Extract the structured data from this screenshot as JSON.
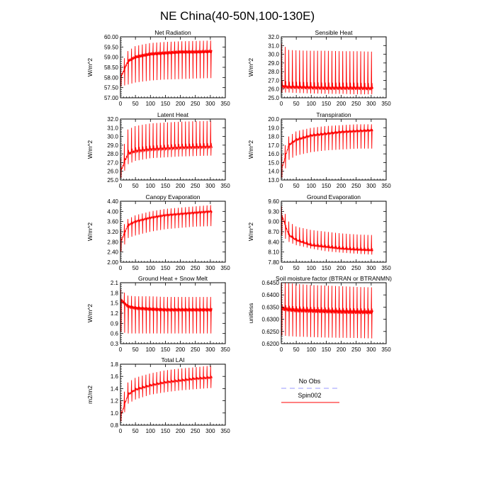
{
  "title": "NE China(40-50N,100-130E)",
  "colors": {
    "spin": "#ff0000",
    "noobs": "#9999ff",
    "axis": "#000000",
    "background": "#ffffff"
  },
  "legend": {
    "items": [
      {
        "label": "No Obs",
        "style": "dashed",
        "color": "#9999ff"
      },
      {
        "label": "Spin002",
        "style": "solid",
        "color": "#ff0000"
      }
    ]
  },
  "chart_data": [
    {
      "type": "line",
      "title": "Net Radiation",
      "ylabel": "W/m^2",
      "xlim": [
        0,
        350
      ],
      "ylim": [
        57.0,
        60.0
      ],
      "xticks": [
        0,
        50,
        100,
        150,
        200,
        250,
        300,
        350
      ],
      "yticks": [
        "57.00",
        "57.50",
        "58.00",
        "58.50",
        "59.00",
        "59.50",
        "60.00"
      ],
      "series": [
        {
          "name": "Spin002",
          "color": "#ff0000",
          "period_months": 12,
          "n_months": 306,
          "x": [
            1,
            25,
            50,
            100,
            150,
            200,
            250,
            306
          ],
          "min": [
            57.55,
            57.65,
            57.75,
            57.85,
            57.9,
            57.92,
            57.95,
            57.97
          ],
          "max": [
            58.6,
            59.3,
            59.55,
            59.7,
            59.75,
            59.78,
            59.8,
            59.82
          ],
          "mid": [
            58.0,
            58.8,
            59.0,
            59.15,
            59.2,
            59.25,
            59.25,
            59.28
          ]
        }
      ]
    },
    {
      "type": "line",
      "title": "Sensible Heat",
      "ylabel": "W/m^2",
      "xlim": [
        0,
        350
      ],
      "ylim": [
        25.0,
        32.0
      ],
      "xticks": [
        0,
        50,
        100,
        150,
        200,
        250,
        300,
        350
      ],
      "yticks": [
        "25.0",
        "26.0",
        "27.0",
        "28.0",
        "29.0",
        "30.0",
        "31.0",
        "32.0"
      ],
      "series": [
        {
          "name": "Spin002",
          "color": "#ff0000",
          "period_months": 12,
          "n_months": 306,
          "x": [
            1,
            25,
            50,
            100,
            150,
            200,
            250,
            306
          ],
          "min": [
            25.6,
            25.6,
            25.55,
            25.5,
            25.45,
            25.45,
            25.4,
            25.4
          ],
          "max": [
            31.2,
            30.5,
            30.45,
            30.4,
            30.4,
            30.35,
            30.35,
            30.3
          ],
          "mid": [
            26.3,
            26.2,
            26.2,
            26.15,
            26.1,
            26.1,
            26.1,
            26.05
          ]
        }
      ]
    },
    {
      "type": "line",
      "title": "Latent Heat",
      "ylabel": "W/m^2",
      "xlim": [
        0,
        350
      ],
      "ylim": [
        25.0,
        32.0
      ],
      "xticks": [
        0,
        50,
        100,
        150,
        200,
        250,
        300,
        350
      ],
      "yticks": [
        "25.0",
        "26.0",
        "27.0",
        "28.0",
        "29.0",
        "30.0",
        "31.0",
        "32.0"
      ],
      "series": [
        {
          "name": "Spin002",
          "color": "#ff0000",
          "period_months": 12,
          "n_months": 306,
          "x": [
            1,
            25,
            50,
            100,
            150,
            200,
            250,
            306
          ],
          "min": [
            25.2,
            26.8,
            27.2,
            27.5,
            27.6,
            27.7,
            27.75,
            27.8
          ],
          "max": [
            27.5,
            30.8,
            31.2,
            31.5,
            31.6,
            31.7,
            31.75,
            31.8
          ],
          "mid": [
            26.0,
            28.0,
            28.3,
            28.5,
            28.6,
            28.7,
            28.75,
            28.8
          ]
        }
      ]
    },
    {
      "type": "line",
      "title": "Transpiration",
      "ylabel": "W/m^2",
      "xlim": [
        0,
        350
      ],
      "ylim": [
        13.0,
        20.0
      ],
      "xticks": [
        0,
        50,
        100,
        150,
        200,
        250,
        300,
        350
      ],
      "yticks": [
        "13.0",
        "14.0",
        "15.0",
        "16.0",
        "17.0",
        "18.0",
        "19.0",
        "20.0"
      ],
      "series": [
        {
          "name": "Spin002",
          "color": "#ff0000",
          "period_months": 12,
          "n_months": 306,
          "x": [
            1,
            25,
            50,
            100,
            150,
            200,
            250,
            306
          ],
          "min": [
            13.2,
            15.3,
            15.8,
            16.2,
            16.4,
            16.5,
            16.6,
            16.6
          ],
          "max": [
            16.0,
            18.0,
            18.6,
            19.0,
            19.2,
            19.3,
            19.4,
            19.4
          ],
          "mid": [
            14.2,
            17.0,
            17.6,
            18.1,
            18.3,
            18.5,
            18.6,
            18.7
          ]
        }
      ]
    },
    {
      "type": "line",
      "title": "Canopy Evaporation",
      "ylabel": "W/m^2",
      "xlim": [
        0,
        350
      ],
      "ylim": [
        2.0,
        4.4
      ],
      "xticks": [
        0,
        50,
        100,
        150,
        200,
        250,
        300,
        350
      ],
      "yticks": [
        "2.00",
        "2.40",
        "2.80",
        "3.20",
        "3.60",
        "4.00",
        "4.40"
      ],
      "series": [
        {
          "name": "Spin002",
          "color": "#ff0000",
          "period_months": 12,
          "n_months": 306,
          "x": [
            1,
            25,
            50,
            100,
            150,
            200,
            250,
            306
          ],
          "min": [
            2.4,
            2.95,
            3.05,
            3.2,
            3.3,
            3.35,
            3.4,
            3.42
          ],
          "max": [
            3.3,
            3.7,
            3.85,
            4.0,
            4.1,
            4.15,
            4.2,
            4.25
          ],
          "mid": [
            2.8,
            3.45,
            3.6,
            3.75,
            3.85,
            3.9,
            3.95,
            4.0
          ]
        }
      ]
    },
    {
      "type": "line",
      "title": "Ground Evaporation",
      "ylabel": "W/m^2",
      "xlim": [
        0,
        350
      ],
      "ylim": [
        7.8,
        9.6
      ],
      "xticks": [
        0,
        50,
        100,
        150,
        200,
        250,
        300,
        350
      ],
      "yticks": [
        "7.80",
        "8.10",
        "8.40",
        "8.70",
        "9.00",
        "9.30",
        "9.60"
      ],
      "series": [
        {
          "name": "Spin002",
          "color": "#ff0000",
          "period_months": 12,
          "n_months": 306,
          "x": [
            1,
            25,
            50,
            100,
            150,
            200,
            250,
            306
          ],
          "min": [
            8.6,
            8.4,
            8.3,
            8.2,
            8.12,
            8.08,
            8.05,
            8.02
          ],
          "max": [
            9.45,
            9.0,
            8.85,
            8.75,
            8.7,
            8.65,
            8.62,
            8.6
          ],
          "mid": [
            9.2,
            8.6,
            8.45,
            8.3,
            8.25,
            8.2,
            8.17,
            8.15
          ]
        }
      ]
    },
    {
      "type": "line",
      "title": "Ground Heat + Snow Melt",
      "ylabel": "W/m^2",
      "xlim": [
        0,
        350
      ],
      "ylim": [
        0.3,
        2.1
      ],
      "xticks": [
        0,
        50,
        100,
        150,
        200,
        250,
        300,
        350
      ],
      "yticks": [
        "0.3",
        "0.6",
        "0.9",
        "1.2",
        "1.5",
        "1.8",
        "2.1"
      ],
      "series": [
        {
          "name": "Spin002",
          "color": "#ff0000",
          "period_months": 12,
          "n_months": 306,
          "x": [
            1,
            25,
            50,
            100,
            150,
            200,
            250,
            306
          ],
          "min": [
            0.65,
            0.6,
            0.6,
            0.6,
            0.6,
            0.6,
            0.6,
            0.6
          ],
          "max": [
            1.9,
            1.72,
            1.7,
            1.7,
            1.68,
            1.68,
            1.68,
            1.68
          ],
          "mid": [
            1.6,
            1.4,
            1.35,
            1.32,
            1.3,
            1.3,
            1.3,
            1.3
          ]
        }
      ]
    },
    {
      "type": "line",
      "title": "Soil moisture factor (BTRAN or BTRANMN)",
      "ylabel": "unitless",
      "xlim": [
        0,
        350
      ],
      "ylim": [
        0.62,
        0.646
      ],
      "xticks": [
        0,
        50,
        100,
        150,
        200,
        250,
        300,
        350
      ],
      "yticks": [
        "0.6200",
        "0.6250",
        "0.6300",
        "0.6350",
        "0.6400",
        "0.6450"
      ],
      "series": [
        {
          "name": "Spin002",
          "color": "#ff0000",
          "period_months": 12,
          "n_months": 306,
          "x": [
            1,
            25,
            50,
            100,
            150,
            200,
            250,
            306
          ],
          "min": [
            0.6235,
            0.6232,
            0.623,
            0.6228,
            0.6226,
            0.6225,
            0.6224,
            0.6222
          ],
          "max": [
            0.6465,
            0.6458,
            0.6455,
            0.645,
            0.6448,
            0.6445,
            0.6442,
            0.644
          ],
          "mid": [
            0.635,
            0.6345,
            0.6342,
            0.634,
            0.6338,
            0.6336,
            0.6335,
            0.6334
          ]
        }
      ]
    },
    {
      "type": "line",
      "title": "Total LAI",
      "ylabel": "m2/m2",
      "xlim": [
        0,
        350
      ],
      "ylim": [
        0.8,
        1.8
      ],
      "xticks": [
        0,
        50,
        100,
        150,
        200,
        250,
        300,
        350
      ],
      "yticks": [
        "0.8",
        "1.0",
        "1.2",
        "1.4",
        "1.6",
        "1.8"
      ],
      "series": [
        {
          "name": "Spin002",
          "color": "#ff0000",
          "period_months": 12,
          "n_months": 306,
          "x": [
            1,
            25,
            50,
            100,
            150,
            200,
            250,
            306
          ],
          "min": [
            0.85,
            1.15,
            1.22,
            1.3,
            1.34,
            1.37,
            1.39,
            1.41
          ],
          "max": [
            1.2,
            1.5,
            1.58,
            1.65,
            1.7,
            1.73,
            1.75,
            1.78
          ],
          "mid": [
            0.95,
            1.3,
            1.38,
            1.45,
            1.5,
            1.53,
            1.56,
            1.58
          ]
        }
      ]
    }
  ]
}
